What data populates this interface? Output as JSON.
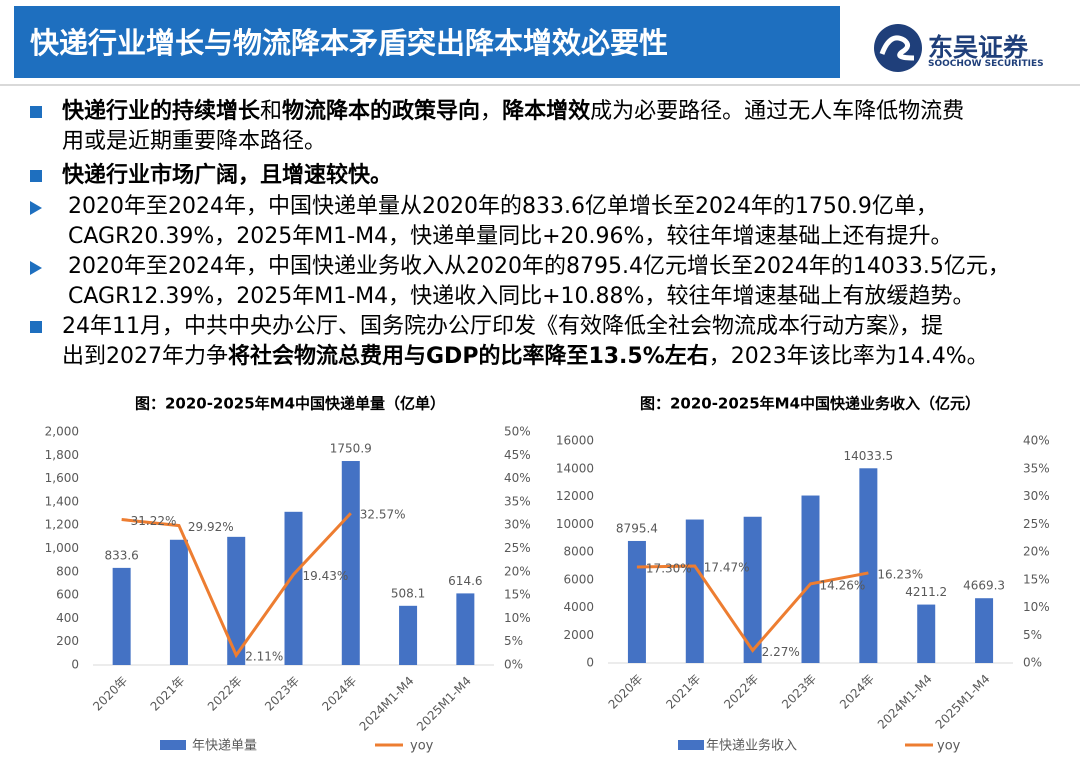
{
  "header": {
    "title": "快递行业增长与物流降本矛盾突出降本增效必要性",
    "logo_name": "东吴证券",
    "logo_subtitle": "SOOCHOW SECURITIES"
  },
  "bullets": [
    {
      "marker": "square",
      "lines": [
        [
          {
            "t": "快递行业的持续增长",
            "b": true
          },
          {
            "t": "和",
            "b": false
          },
          {
            "t": "物流降本的政策导向",
            "b": true
          },
          {
            "t": "，",
            "b": false
          },
          {
            "t": "降本增效",
            "b": true
          },
          {
            "t": "成为必要路径。通过无人车降低物流费",
            "b": false
          }
        ],
        [
          {
            "t": "用或是近期重要降本路径。",
            "b": false
          }
        ]
      ]
    },
    {
      "marker": "square",
      "lines": [
        [
          {
            "t": "快递行业市场广阔，且增速较快。",
            "b": true
          }
        ]
      ]
    },
    {
      "marker": "arrow",
      "lines": [
        [
          {
            "t": "2020年至2024年，中国快递单量从2020年的833.6亿单增长至2024年的1750.9亿单，",
            "b": false
          }
        ],
        [
          {
            "t": "CAGR20.39%，2025年M1-M4，快递单量同比+20.96%，较往年增速基础上还有提升。",
            "b": false
          }
        ]
      ]
    },
    {
      "marker": "arrow",
      "lines": [
        [
          {
            "t": "2020年至2024年，中国快递业务收入从2020年的8795.4亿元增长至2024年的14033.5亿元，",
            "b": false
          }
        ],
        [
          {
            "t": "CAGR12.39%，2025年M1-M4，快递收入同比+10.88%，较往年增速基础上有放缓趋势。",
            "b": false
          }
        ]
      ]
    },
    {
      "marker": "square",
      "lines": [
        [
          {
            "t": "24年11月，中共中央办公厅、国务院办公厅印发《有效降低全社会物流成本行动方案》，提",
            "b": false
          }
        ],
        [
          {
            "t": "出到2027年力争",
            "b": false
          },
          {
            "t": "将社会物流总费用与GDP的比率降至13.5%左右",
            "b": true
          },
          {
            "t": "，2023年该比率为14.4%。",
            "b": false
          }
        ]
      ]
    }
  ],
  "chart_data": [
    {
      "type": "bar",
      "title": "图：2020-2025年M4中国快递单量（亿单）",
      "categories": [
        "2020年",
        "2021年",
        "2022年",
        "2023年",
        "2024年",
        "2024M1-M4",
        "2025M1-M4"
      ],
      "series": [
        {
          "name": "年快递单量",
          "type": "bar",
          "color": "#4472c4",
          "values": [
            833.6,
            1075,
            1100,
            1315,
            1750.9,
            508.1,
            614.6
          ],
          "value_labels": [
            "833.6",
            null,
            null,
            null,
            "1750.9",
            "508.1",
            "614.6"
          ]
        },
        {
          "name": "yoy",
          "type": "line",
          "axis": "y2",
          "color": "#ed7d31",
          "values": [
            31.22,
            29.92,
            2.11,
            19.43,
            32.57,
            null,
            null
          ],
          "value_labels": [
            "31.22%",
            "29.92%",
            "2.11%",
            "19.43%",
            "32.57%",
            null,
            null
          ]
        }
      ],
      "ylim": [
        0,
        2000
      ],
      "yticks": [
        0,
        200,
        400,
        600,
        800,
        {
          "value": 1000,
          "label": "1,000"
        },
        {
          "value": 1200,
          "label": "1,200"
        },
        {
          "value": 1400,
          "label": "1,400"
        },
        {
          "value": 1600,
          "label": "1,600"
        },
        {
          "value": 1800,
          "label": "1,800"
        },
        {
          "value": 2000,
          "label": "2,000"
        }
      ],
      "y2lim": [
        0,
        50
      ],
      "y2ticks": [
        {
          "value": 0,
          "label": "0%"
        },
        {
          "value": 5,
          "label": "5%"
        },
        {
          "value": 10,
          "label": "10%"
        },
        {
          "value": 15,
          "label": "15%"
        },
        {
          "value": 20,
          "label": "20%"
        },
        {
          "value": 25,
          "label": "25%"
        },
        {
          "value": 30,
          "label": "30%"
        },
        {
          "value": 35,
          "label": "35%"
        },
        {
          "value": 40,
          "label": "40%"
        },
        {
          "value": 45,
          "label": "45%"
        },
        {
          "value": 50,
          "label": "50%"
        }
      ],
      "grid": false
    },
    {
      "type": "bar",
      "title": "图：2020-2025年M4中国快递业务收入（亿元）",
      "categories": [
        "2020年",
        "2021年",
        "2022年",
        "2023年",
        "2024年",
        "2024M1-M4",
        "2025M1-M4"
      ],
      "series": [
        {
          "name": "年快递业务收入",
          "type": "bar",
          "color": "#4472c4",
          "values": [
            8795.4,
            10340,
            10540,
            12070,
            14033.5,
            4211.2,
            4669.3
          ],
          "value_labels": [
            "8795.4",
            null,
            null,
            null,
            "14033.5",
            "4211.2",
            "4669.3"
          ]
        },
        {
          "name": "yoy",
          "type": "line",
          "axis": "y2",
          "color": "#ed7d31",
          "values": [
            17.3,
            17.47,
            2.27,
            14.26,
            16.23,
            null,
            null
          ],
          "value_labels": [
            "17.30%",
            "17.47%",
            "2.27%",
            "14.26%",
            "16.23%",
            null,
            null
          ]
        }
      ],
      "ylim": [
        0,
        16000
      ],
      "yticks": [
        0,
        2000,
        4000,
        6000,
        8000,
        10000,
        12000,
        14000,
        16000
      ],
      "y2lim": [
        0,
        40
      ],
      "y2ticks": [
        {
          "value": 0,
          "label": "0%"
        },
        {
          "value": 5,
          "label": "5%"
        },
        {
          "value": 10,
          "label": "10%"
        },
        {
          "value": 15,
          "label": "15%"
        },
        {
          "value": 20,
          "label": "20%"
        },
        {
          "value": 25,
          "label": "25%"
        },
        {
          "value": 30,
          "label": "30%"
        },
        {
          "value": 35,
          "label": "35%"
        },
        {
          "value": 40,
          "label": "40%"
        }
      ],
      "grid": false
    }
  ]
}
